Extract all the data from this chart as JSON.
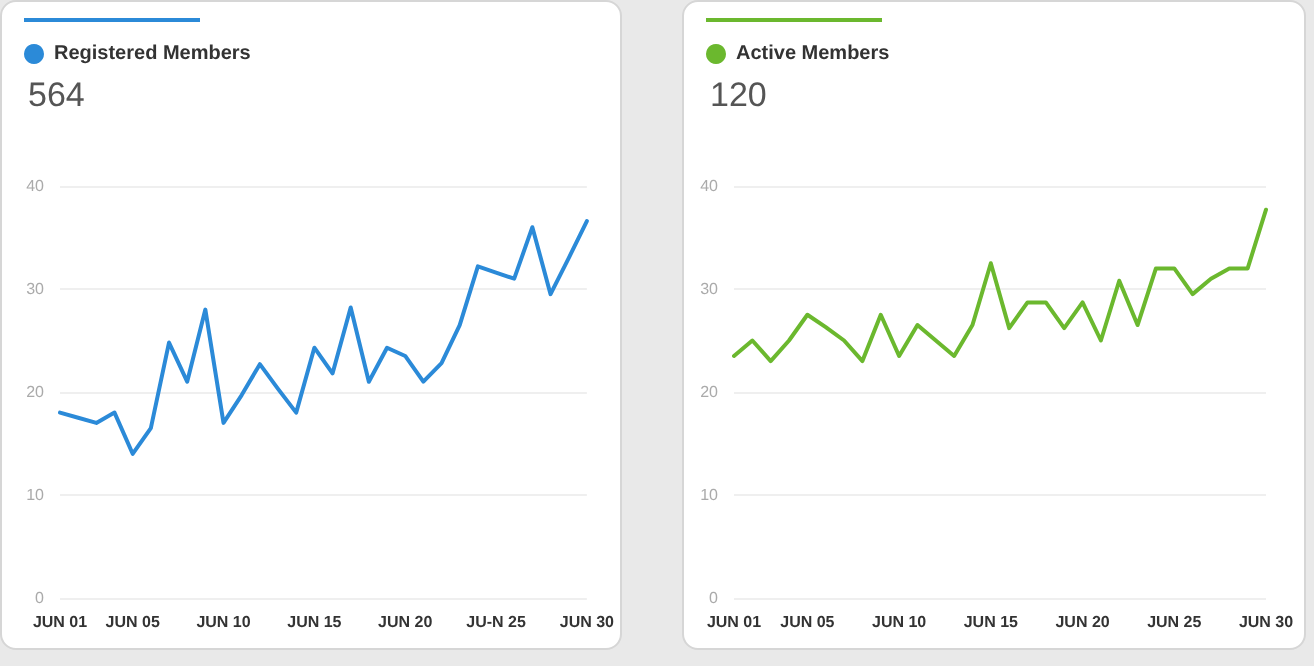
{
  "chart_data": [
    {
      "type": "line",
      "subtitle": "564",
      "legend": "top left",
      "grid": "y",
      "marker": "none",
      "line_style": "solid",
      "categories": [
        "JUN 01",
        null,
        null,
        null,
        "JUN 05",
        null,
        null,
        null,
        null,
        "JUN 10",
        null,
        null,
        null,
        null,
        "JUN 15",
        null,
        null,
        null,
        null,
        "JUN 20",
        null,
        null,
        null,
        null,
        "JU-N 25",
        null,
        null,
        null,
        null,
        "JUN 30"
      ],
      "ylim": [
        0,
        40
      ],
      "yticks": [
        0,
        10,
        20,
        30,
        40
      ],
      "series": [
        {
          "name": "Registered Members",
          "color": "#2b8ad8",
          "values": [
            18,
            17.5,
            17,
            18,
            14,
            16.5,
            24.8,
            21,
            28,
            17,
            19.7,
            22.7,
            20.3,
            18,
            24.3,
            21.8,
            28.2,
            21,
            24.3,
            23.5,
            21,
            22.8,
            26.5,
            32.2,
            31.6,
            31,
            36,
            29.5,
            33,
            36.6
          ]
        }
      ]
    },
    {
      "type": "line",
      "subtitle": "120",
      "legend": "top left",
      "grid": "y",
      "marker": "none",
      "line_style": "solid",
      "categories": [
        "JUN 01",
        null,
        null,
        null,
        "JUN 05",
        null,
        null,
        null,
        null,
        "JUN 10",
        null,
        null,
        null,
        null,
        "JUN 15",
        null,
        null,
        null,
        null,
        "JUN 20",
        null,
        null,
        null,
        null,
        "JUN 25",
        null,
        null,
        null,
        null,
        "JUN 30"
      ],
      "ylim": [
        0,
        40
      ],
      "yticks": [
        0,
        10,
        20,
        30,
        40
      ],
      "series": [
        {
          "name": "Active Members",
          "color": "#6bb82e",
          "values": [
            23.5,
            25,
            23,
            25,
            27.5,
            26.3,
            25,
            23,
            27.5,
            23.5,
            26.5,
            25,
            23.5,
            26.5,
            32.5,
            26.2,
            28.7,
            28.7,
            26.2,
            28.7,
            25,
            30.8,
            26.5,
            32,
            32,
            29.5,
            31,
            32,
            32,
            37.7
          ]
        }
      ]
    }
  ]
}
